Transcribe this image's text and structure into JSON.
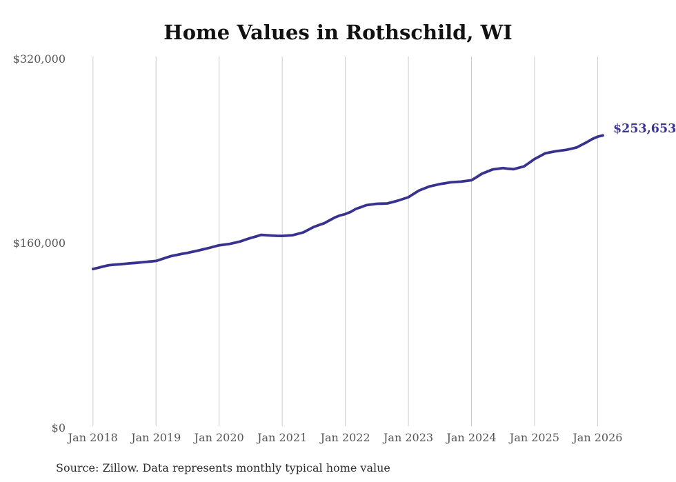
{
  "source_note": "Source: Zillow. Data represents monthly typical home value",
  "colors": {
    "line": "#38328f",
    "grid": "#cccccc",
    "title_text": "#121212",
    "axis_label_text": "#555555",
    "end_label_text": "#3a349a",
    "source_text": "#2b2b2b",
    "background": "#ffffff"
  },
  "chart_data": {
    "type": "line",
    "title": "Home Values in Rothschild, WI",
    "xlabel": "",
    "ylabel": "",
    "ylim": [
      0,
      320000
    ],
    "y_ticks": [
      320000,
      160000,
      0
    ],
    "y_tick_labels": [
      "$320,000",
      "$160,000",
      "$0"
    ],
    "x_tick_labels": [
      "Jan 2018",
      "Jan 2019",
      "Jan 2020",
      "Jan 2021",
      "Jan 2022",
      "Jan 2023",
      "Jan 2024",
      "Jan 2025",
      "Jan 2026"
    ],
    "grid": "vertical-only",
    "legend": "none",
    "last_value_label": "$253,653",
    "line_color": "#38328f",
    "grid_color": "#cccccc",
    "x": [
      "2018-01",
      "2018-02",
      "2018-03",
      "2018-04",
      "2018-05",
      "2018-06",
      "2018-07",
      "2018-08",
      "2018-09",
      "2018-10",
      "2018-11",
      "2018-12",
      "2019-01",
      "2019-02",
      "2019-03",
      "2019-04",
      "2019-05",
      "2019-06",
      "2019-07",
      "2019-08",
      "2019-09",
      "2019-10",
      "2019-11",
      "2019-12",
      "2020-01",
      "2020-02",
      "2020-03",
      "2020-04",
      "2020-05",
      "2020-06",
      "2020-07",
      "2020-08",
      "2020-09",
      "2020-10",
      "2020-11",
      "2020-12",
      "2021-01",
      "2021-02",
      "2021-03",
      "2021-04",
      "2021-05",
      "2021-06",
      "2021-07",
      "2021-08",
      "2021-09",
      "2021-10",
      "2021-11",
      "2021-12",
      "2022-01",
      "2022-02",
      "2022-03",
      "2022-04",
      "2022-05",
      "2022-06",
      "2022-07",
      "2022-08",
      "2022-09",
      "2022-10",
      "2022-11",
      "2022-12",
      "2023-01",
      "2023-02",
      "2023-03",
      "2023-04",
      "2023-05",
      "2023-06",
      "2023-07",
      "2023-08",
      "2023-09",
      "2023-10",
      "2023-11",
      "2023-12",
      "2024-01",
      "2024-02",
      "2024-03",
      "2024-04",
      "2024-05",
      "2024-06",
      "2024-07",
      "2024-08",
      "2024-09",
      "2024-10",
      "2024-11",
      "2024-12",
      "2025-01",
      "2025-02",
      "2025-03",
      "2025-04",
      "2025-05",
      "2025-06",
      "2025-07",
      "2025-08",
      "2025-09",
      "2025-10",
      "2025-11",
      "2025-12",
      "2026-01",
      "2026-02"
    ],
    "values": [
      137800,
      138900,
      140000,
      141100,
      141500,
      141900,
      142300,
      142700,
      143100,
      143500,
      143900,
      144300,
      144800,
      146300,
      147800,
      149200,
      150100,
      151000,
      151800,
      152800,
      153800,
      154900,
      156000,
      157200,
      158400,
      159000,
      159600,
      160600,
      161700,
      163200,
      164700,
      166000,
      167400,
      167100,
      166800,
      166600,
      166500,
      166800,
      167100,
      168300,
      169500,
      171900,
      174300,
      176000,
      177500,
      180000,
      182500,
      184300,
      185500,
      187300,
      189900,
      191500,
      193200,
      193800,
      194400,
      194500,
      194700,
      195900,
      197100,
      198600,
      200100,
      203000,
      205800,
      207600,
      209400,
      210400,
      211500,
      212200,
      213000,
      213300,
      213600,
      214200,
      214800,
      217600,
      220500,
      222300,
      224100,
      224700,
      225300,
      224800,
      224400,
      225600,
      226800,
      230000,
      233200,
      235600,
      238100,
      239000,
      239900,
      240500,
      241100,
      242100,
      243200,
      245600,
      248000,
      250600,
      252600,
      253653
    ]
  }
}
